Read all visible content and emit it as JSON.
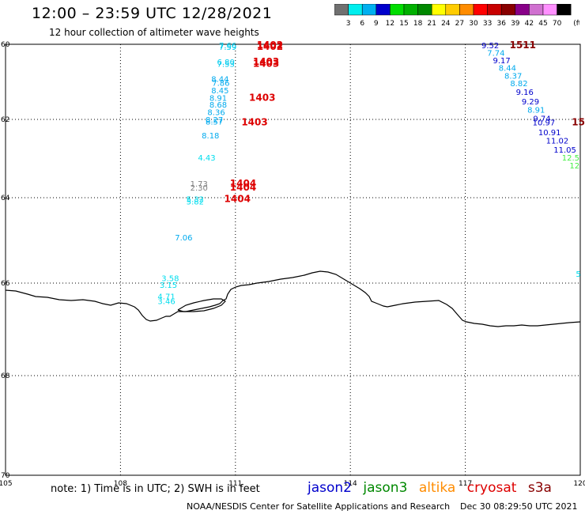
{
  "header": {
    "title": "12:00 – 23:59 UTC 12/28/2021",
    "subtitle": "12 hour collection of altimeter wave heights"
  },
  "colorbar": {
    "colors": [
      "#707070",
      "#00eeee",
      "#00b0f0",
      "#0000cc",
      "#00dd00",
      "#00b000",
      "#008800",
      "#ffff00",
      "#ffcc00",
      "#ff8c00",
      "#ff0000",
      "#c80000",
      "#880000",
      "#880088",
      "#d070d0",
      "#ff90ff",
      "#000000"
    ],
    "labels": [
      "3",
      "6",
      "9",
      "12",
      "15",
      "18",
      "21",
      "24",
      "27",
      "30",
      "33",
      "36",
      "39",
      "42",
      "45",
      "70"
    ],
    "unit": "(ft)"
  },
  "axes": {
    "lon_ticks": [
      "105",
      "108",
      "111",
      "114",
      "117",
      "120"
    ],
    "lat_ticks": [
      "60",
      "62",
      "64",
      "66",
      "68",
      "70"
    ]
  },
  "observations": [
    {
      "lon": 110.8,
      "lat": 60.1,
      "value": "7.66",
      "color": "#00ccee"
    },
    {
      "lon": 110.8,
      "lat": 60.15,
      "value": "7.59",
      "color": "#00ccee"
    },
    {
      "lon": 110.75,
      "lat": 60.55,
      "value": "6.80",
      "color": "#00ccee"
    },
    {
      "lon": 110.75,
      "lat": 60.6,
      "value": "7.53",
      "color": "#00ccee"
    },
    {
      "lon": 110.6,
      "lat": 61.0,
      "value": "8.44",
      "color": "#00aaee"
    },
    {
      "lon": 110.62,
      "lat": 61.1,
      "value": "7.86",
      "color": "#00aaee"
    },
    {
      "lon": 110.6,
      "lat": 61.3,
      "value": "8.45",
      "color": "#00aaee"
    },
    {
      "lon": 110.55,
      "lat": 61.5,
      "value": "8.91",
      "color": "#00aaee"
    },
    {
      "lon": 110.55,
      "lat": 61.68,
      "value": "8.68",
      "color": "#00aaee"
    },
    {
      "lon": 110.5,
      "lat": 61.88,
      "value": "8.36",
      "color": "#00aaee"
    },
    {
      "lon": 110.45,
      "lat": 62.08,
      "value": "8.27",
      "color": "#00aaee"
    },
    {
      "lon": 110.45,
      "lat": 62.13,
      "value": "8.57",
      "color": "#00aaee"
    },
    {
      "lon": 110.35,
      "lat": 62.48,
      "value": "8.18",
      "color": "#00aaee"
    },
    {
      "lon": 110.25,
      "lat": 63.05,
      "value": "4.43",
      "color": "#00ddee"
    },
    {
      "lon": 110.05,
      "lat": 63.72,
      "value": "1.73",
      "color": "#808080"
    },
    {
      "lon": 110.05,
      "lat": 63.82,
      "value": "2.30",
      "color": "#808080"
    },
    {
      "lon": 109.95,
      "lat": 64.1,
      "value": "5.32",
      "color": "#00ddee"
    },
    {
      "lon": 109.95,
      "lat": 64.16,
      "value": "5.82",
      "color": "#00ddee"
    },
    {
      "lon": 109.65,
      "lat": 65.0,
      "value": "7.06",
      "color": "#00aaee"
    },
    {
      "lon": 109.3,
      "lat": 65.95,
      "value": "3.58",
      "color": "#00ddee"
    },
    {
      "lon": 109.25,
      "lat": 66.1,
      "value": "3.15",
      "color": "#00ddee"
    },
    {
      "lon": 109.2,
      "lat": 66.35,
      "value": "4.71",
      "color": "#00ddee"
    },
    {
      "lon": 109.2,
      "lat": 66.45,
      "value": "3.46",
      "color": "#00ddee"
    },
    {
      "lon": 117.65,
      "lat": 60.1,
      "value": "9.52",
      "color": "#0000cc"
    },
    {
      "lon": 117.8,
      "lat": 60.3,
      "value": "7.74",
      "color": "#00aaee"
    },
    {
      "lon": 117.95,
      "lat": 60.5,
      "value": "9.17",
      "color": "#0000cc"
    },
    {
      "lon": 118.1,
      "lat": 60.7,
      "value": "8.44",
      "color": "#00aaee"
    },
    {
      "lon": 118.25,
      "lat": 60.92,
      "value": "8.37",
      "color": "#00aaee"
    },
    {
      "lon": 118.4,
      "lat": 61.12,
      "value": "8.82",
      "color": "#00aaee"
    },
    {
      "lon": 118.55,
      "lat": 61.35,
      "value": "9.16",
      "color": "#0000cc"
    },
    {
      "lon": 118.7,
      "lat": 61.6,
      "value": "9.29",
      "color": "#0000cc"
    },
    {
      "lon": 118.85,
      "lat": 61.82,
      "value": "8.91",
      "color": "#00aaee"
    },
    {
      "lon": 119.0,
      "lat": 62.05,
      "value": "9.74",
      "color": "#0000cc"
    },
    {
      "lon": 119.05,
      "lat": 62.15,
      "value": "10.97",
      "color": "#0000cc"
    },
    {
      "lon": 119.2,
      "lat": 62.4,
      "value": "10.91",
      "color": "#0000cc"
    },
    {
      "lon": 119.4,
      "lat": 62.62,
      "value": "11.02",
      "color": "#0000cc"
    },
    {
      "lon": 119.6,
      "lat": 62.85,
      "value": "11.05",
      "color": "#0000cc"
    },
    {
      "lon": 119.75,
      "lat": 63.05,
      "value": "12.5",
      "color": "#44ee44"
    },
    {
      "lon": 119.85,
      "lat": 63.25,
      "value": "12",
      "color": "#44ee44"
    },
    {
      "lon": 119.95,
      "lat": 65.85,
      "value": "5",
      "color": "#00ddee"
    }
  ],
  "pass_labels": [
    {
      "lon": 111.9,
      "lat": 60.1,
      "value": "1402",
      "color": "#dd0000"
    },
    {
      "lon": 111.9,
      "lat": 60.15,
      "value": "1402",
      "color": "#dd0000"
    },
    {
      "lon": 111.8,
      "lat": 60.55,
      "value": "1403",
      "color": "#dd0000"
    },
    {
      "lon": 111.8,
      "lat": 60.6,
      "value": "1403",
      "color": "#dd0000"
    },
    {
      "lon": 111.7,
      "lat": 61.5,
      "value": "1403",
      "color": "#dd0000"
    },
    {
      "lon": 111.5,
      "lat": 62.15,
      "value": "1403",
      "color": "#dd0000"
    },
    {
      "lon": 111.2,
      "lat": 63.72,
      "value": "1404",
      "color": "#dd0000"
    },
    {
      "lon": 111.2,
      "lat": 63.82,
      "value": "1404",
      "color": "#dd0000"
    },
    {
      "lon": 111.05,
      "lat": 64.1,
      "value": "1404",
      "color": "#dd0000"
    },
    {
      "lon": 118.5,
      "lat": 60.1,
      "value": "1511",
      "color": "#880000"
    },
    {
      "lon": 119.95,
      "lat": 62.15,
      "value": "15",
      "color": "#880000"
    }
  ],
  "footer": {
    "note": "note:  1) Time is in UTC;  2) SWH is in feet",
    "credit": "NOAA/NESDIS Center for Satellite Applications and Research",
    "timestamp": "Dec 30 08:29:50 UTC 2021"
  },
  "legend": {
    "items": [
      {
        "label": "jason2",
        "color": "#0000cc"
      },
      {
        "label": "jason3",
        "color": "#008800"
      },
      {
        "label": "altika",
        "color": "#ff8c00"
      },
      {
        "label": "cryosat",
        "color": "#dd0000"
      },
      {
        "label": "s3a",
        "color": "#880000"
      }
    ]
  }
}
